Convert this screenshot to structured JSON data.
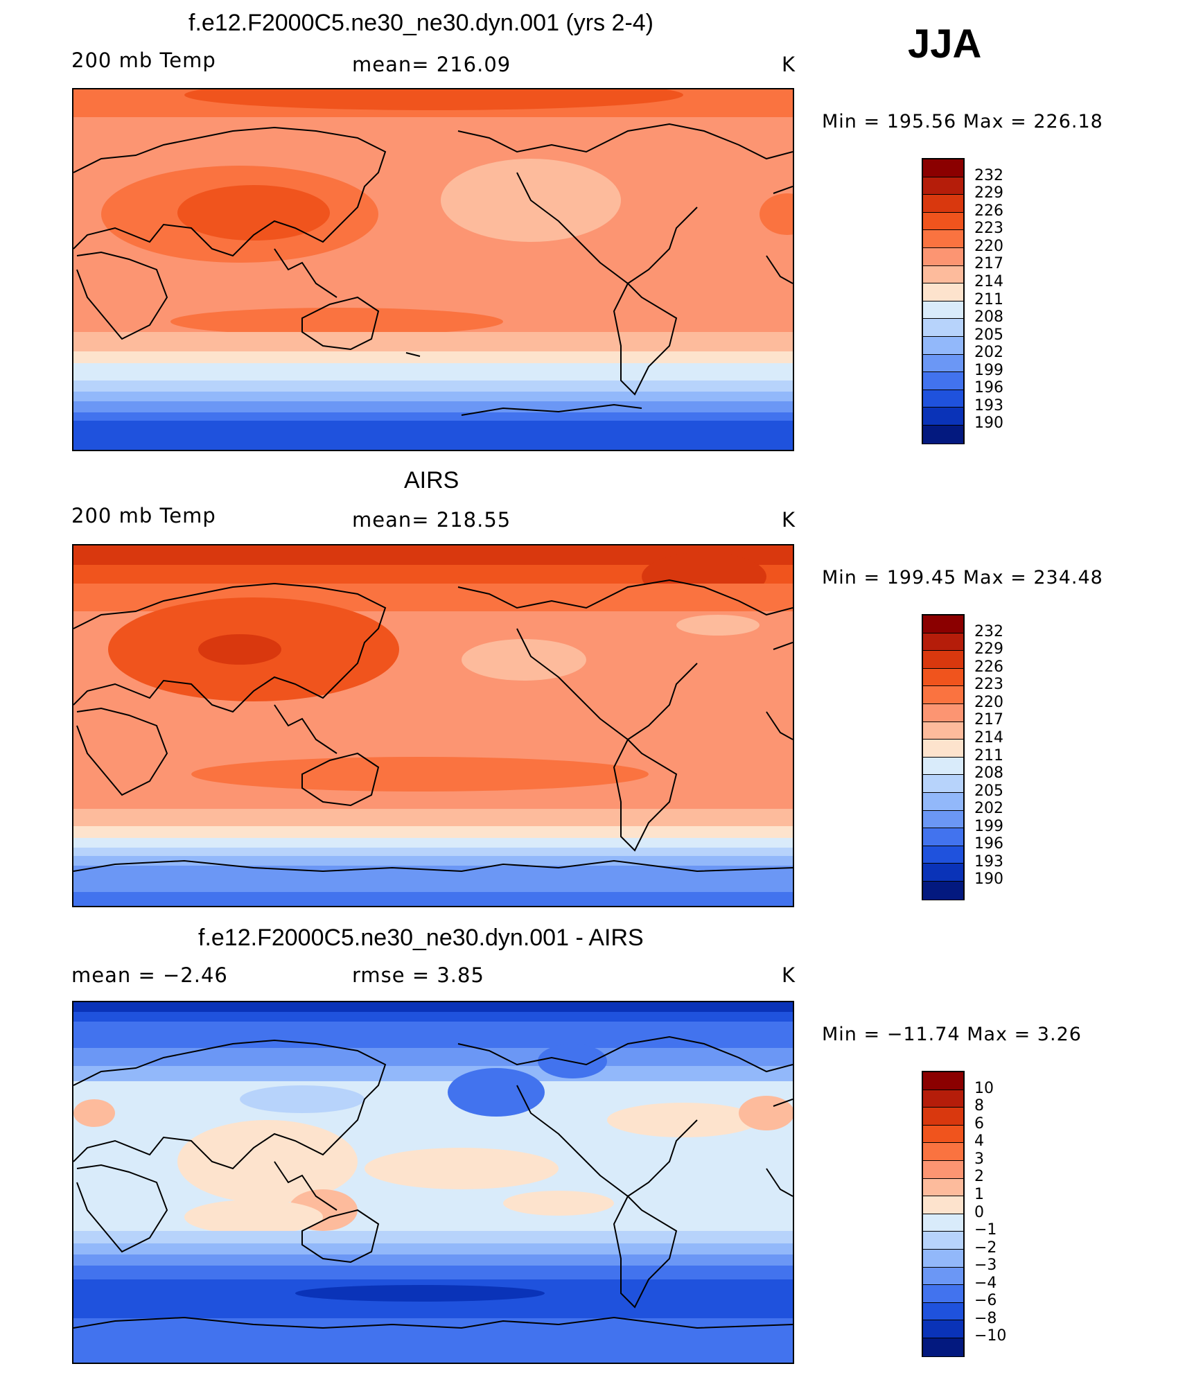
{
  "season": "JJA",
  "panels": [
    {
      "title": "f.e12.F2000C5.ne30_ne30.dyn.001 (yrs 2-4)",
      "left_label": "200 mb Temp",
      "center_label": "mean=  216.09",
      "unit": "K",
      "minmax": "Min  =  195.56  Max  =  226.18",
      "field": "model"
    },
    {
      "title": "AIRS",
      "left_label": "200 mb Temp",
      "center_label": "mean=  218.55",
      "unit": "K",
      "minmax": "Min  =  199.45  Max  =  234.48",
      "field": "obs"
    },
    {
      "title": "f.e12.F2000C5.ne30_ne30.dyn.001 - AIRS",
      "left_label": "mean =    −2.46",
      "center_label": "rmse =     3.85",
      "unit": "K",
      "minmax": "Min  =  −11.74  Max  =     3.26",
      "field": "diff"
    }
  ],
  "colorbar_abs": {
    "labels": [
      "232",
      "229",
      "226",
      "223",
      "220",
      "217",
      "214",
      "211",
      "208",
      "205",
      "202",
      "199",
      "196",
      "193",
      "190"
    ],
    "colors": [
      "#8b0000",
      "#b51d0a",
      "#d9380e",
      "#f0541d",
      "#fa7340",
      "#fc9572",
      "#fdbb9c",
      "#fde3cd",
      "#d9ebfa",
      "#b7d3fb",
      "#92b8fa",
      "#6b97f5",
      "#4273ee",
      "#1f52dd",
      "#0a33b8",
      "#03197f"
    ]
  },
  "colorbar_diff": {
    "labels": [
      "10",
      "8",
      "6",
      "4",
      "3",
      "2",
      "1",
      "0",
      "−1",
      "−2",
      "−3",
      "−4",
      "−6",
      "−8",
      "−10"
    ],
    "colors": [
      "#8b0000",
      "#b51d0a",
      "#d9380e",
      "#f0541d",
      "#fa7340",
      "#fc9572",
      "#fdbb9c",
      "#fde3cd",
      "#d9ebfa",
      "#b7d3fb",
      "#92b8fa",
      "#6b97f5",
      "#4273ee",
      "#1f52dd",
      "#0a33b8",
      "#03197f"
    ]
  }
}
